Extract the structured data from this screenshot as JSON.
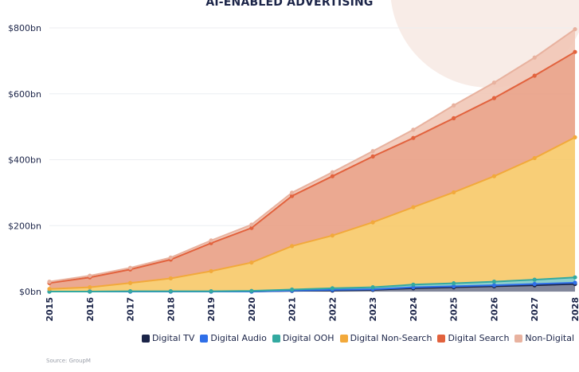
{
  "chart_data": {
    "type": "area",
    "title": "AI-ENABLED ADVERTISING",
    "x": [
      "2015",
      "2016",
      "2017",
      "2018",
      "2019",
      "2020",
      "2021",
      "2022",
      "2023",
      "2024",
      "2025",
      "2026",
      "2027",
      "2028"
    ],
    "y_ticks": [
      "$0bn",
      "$200bn",
      "$400bn",
      "$600bn",
      "$800bn"
    ],
    "ylim": [
      0,
      800
    ],
    "ylabel": "",
    "xlabel": "",
    "stacking": "cumulative",
    "grid": true,
    "legend_position": "bottom-right",
    "series": [
      {
        "name": "Digital TV",
        "color": "#1b2448",
        "marker_color": "#1b2448",
        "fill_opacity": 0.55,
        "values": [
          0,
          0,
          0,
          0,
          0,
          0,
          2,
          3,
          5,
          10,
          13,
          16,
          19,
          23
        ]
      },
      {
        "name": "Digital Audio",
        "color": "#2f6fe8",
        "marker_color": "#2f6fe8",
        "fill_opacity": 0.55,
        "values": [
          0,
          0,
          0,
          0,
          0,
          0,
          1,
          2,
          2,
          3,
          3,
          3,
          4,
          4
        ]
      },
      {
        "name": "Digital OOH",
        "color": "#33a9a0",
        "marker_color": "#33a9a0",
        "fill_opacity": 0.55,
        "values": [
          0,
          0,
          1,
          1,
          1,
          2,
          3,
          5,
          6,
          8,
          9,
          11,
          13,
          16
        ]
      },
      {
        "name": "Digital Non-Search",
        "color": "#f7c55f",
        "marker_color": "#f2a93b",
        "fill_opacity": 0.85,
        "values": [
          8,
          13,
          25,
          39,
          61,
          86,
          132,
          160,
          197,
          235,
          276,
          320,
          369,
          425
        ]
      },
      {
        "name": "Digital Search",
        "color": "#e9a085",
        "marker_color": "#e2623d",
        "fill_opacity": 0.9,
        "values": [
          18,
          30,
          41,
          57,
          85,
          105,
          152,
          180,
          200,
          210,
          225,
          237,
          250,
          259
        ]
      },
      {
        "name": "Non-Digital",
        "color": "#f1c7b6",
        "marker_color": "#e8b29f",
        "fill_opacity": 0.9,
        "values": [
          4,
          5,
          5,
          6,
          8,
          10,
          10,
          12,
          16,
          25,
          39,
          47,
          55,
          69
        ]
      }
    ]
  },
  "source": "Source: GroupM"
}
